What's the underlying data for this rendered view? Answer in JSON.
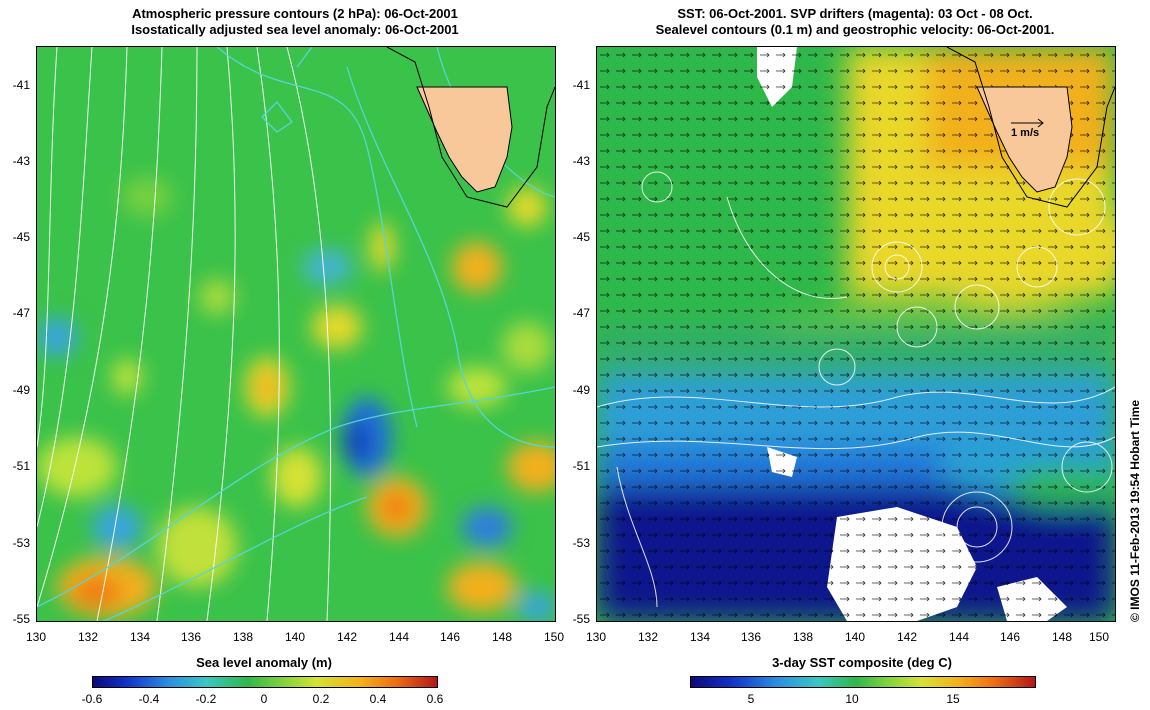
{
  "left_panel": {
    "title_line1": "Atmospheric pressure contours (2 hPa): 06-Oct-2001",
    "title_line2": "Isostatically adjusted sea level anomaly: 06-Oct-2001",
    "colorbar_label": "Sea level anomaly (m)",
    "colorbar_ticks": [
      "-0.6",
      "-0.4",
      "-0.2",
      "0",
      "0.2",
      "0.4",
      "0.6"
    ],
    "colorbar_range": [
      -0.6,
      0.6
    ]
  },
  "right_panel": {
    "title_line1": "SST: 06-Oct-2001. SVP drifters (magenta): 03 Oct - 08 Oct.",
    "title_line2": "Sealevel contours (0.1 m) and geostrophic velocity: 06-Oct-2001.",
    "colorbar_label": "3-day SST composite (deg C)",
    "colorbar_ticks": [
      "5",
      "10",
      "15"
    ],
    "colorbar_range": [
      2,
      19
    ],
    "velocity_scale_label": "1 m/s"
  },
  "axes": {
    "lat_ticks": [
      "-41",
      "-43",
      "-45",
      "-47",
      "-49",
      "-51",
      "-53",
      "-55"
    ],
    "lon_ticks": [
      "130",
      "132",
      "134",
      "136",
      "138",
      "140",
      "142",
      "144",
      "146",
      "148",
      "150"
    ],
    "lat_range": [
      -55,
      -40
    ],
    "lon_range": [
      130,
      150
    ]
  },
  "credit": "© IMOS 11-Feb-2013 19:54 Hobart Time",
  "colors": {
    "land": "#f9c89a",
    "coast": "#000000",
    "pressure_contour": "#ffffff",
    "drifter": "#ff00ff"
  }
}
